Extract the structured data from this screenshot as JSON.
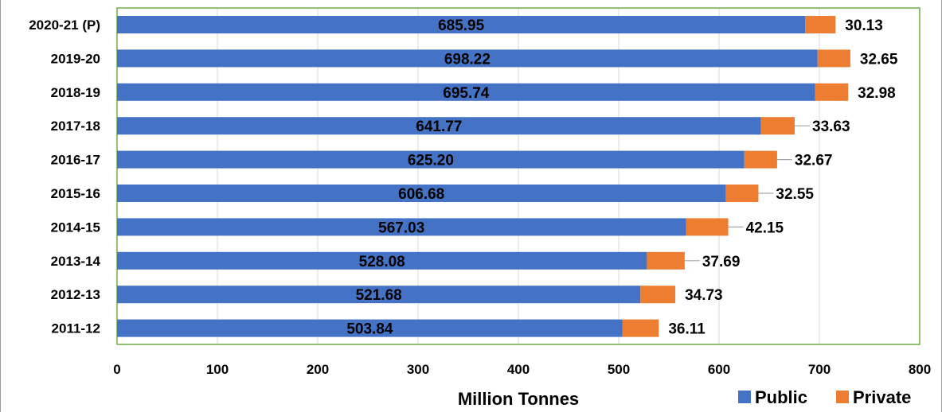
{
  "chart_data": {
    "type": "bar",
    "orientation": "horizontal",
    "stacked": true,
    "categories": [
      "2020-21 (P)",
      "2019-20",
      "2018-19",
      "2017-18",
      "2016-17",
      "2015-16",
      "2014-15",
      "2013-14",
      "2012-13",
      "2011-12"
    ],
    "series": [
      {
        "name": "Public",
        "color": "#4472C4",
        "values": [
          685.95,
          698.22,
          695.74,
          641.77,
          625.2,
          606.68,
          567.03,
          528.08,
          521.68,
          503.84
        ],
        "labels": [
          "685.95",
          "698.22",
          "695.74",
          "641.77",
          "625.20",
          "606.68",
          "567.03",
          "528.08",
          "521.68",
          "503.84"
        ]
      },
      {
        "name": "Private",
        "color": "#ED7D31",
        "values": [
          30.13,
          32.65,
          32.98,
          33.63,
          32.67,
          32.55,
          42.15,
          37.69,
          34.73,
          36.11
        ],
        "labels": [
          "30.13",
          "32.65",
          "32.98",
          "33.63",
          "32.67",
          "32.55",
          "42.15",
          "37.69",
          "34.73",
          "36.11"
        ]
      }
    ],
    "xlabel": "Million Tonnes",
    "ylabel": "",
    "xlim": [
      0,
      800
    ],
    "xticks": [
      "0",
      "100",
      "200",
      "300",
      "400",
      "500",
      "600",
      "700",
      "800"
    ],
    "grid": true,
    "legend_position": "bottom-right"
  }
}
